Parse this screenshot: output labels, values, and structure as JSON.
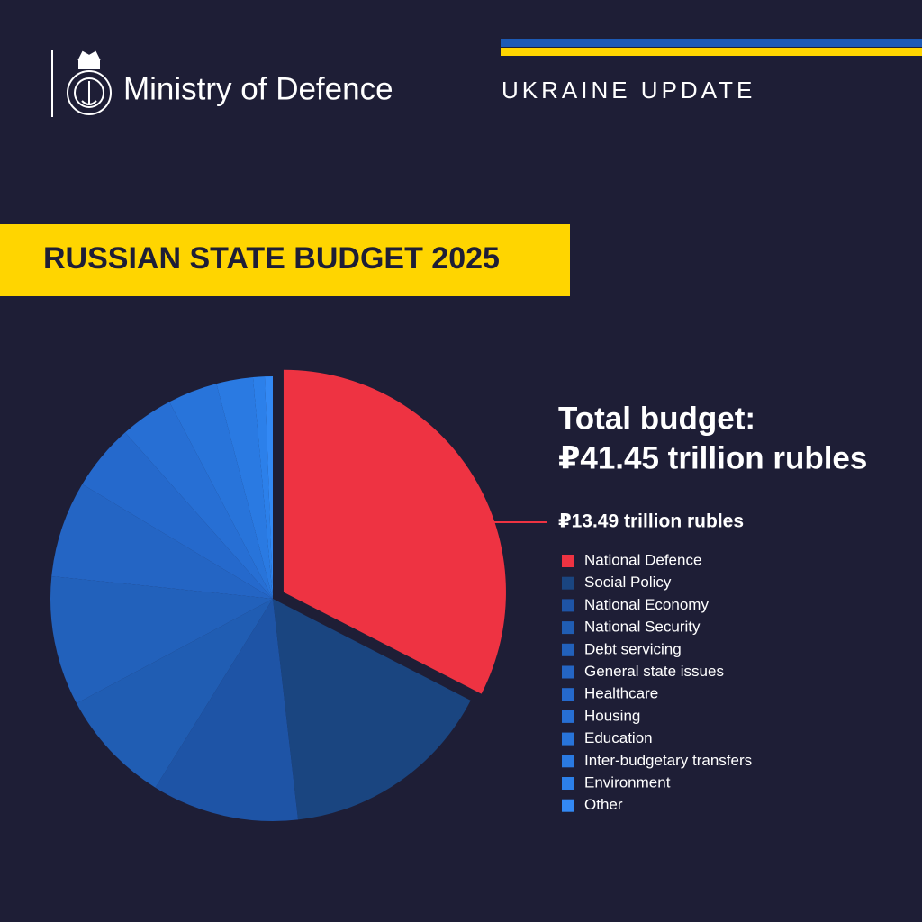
{
  "header": {
    "organisation": "Ministry of Defence",
    "tag": "UKRAINE UPDATE"
  },
  "chart_data": {
    "type": "pie",
    "title": "RUSSIAN STATE BUDGET 2025",
    "total_label": "Total budget:",
    "total_value": "₽41.45 trillion rubles",
    "categories": [
      "National Defence",
      "Social Policy",
      "National Economy",
      "National Security",
      "Debt servicing",
      "General state issues",
      "Healthcare",
      "Housing",
      "Education",
      "Inter-budgetary transfers",
      "Environment",
      "Other"
    ],
    "values": [
      13.49,
      6.48,
      4.42,
      3.46,
      3.9,
      2.9,
      2.0,
      1.6,
      1.5,
      1.1,
      0.35,
      0.24
    ],
    "value_labels": [
      "₽13.49 trillion rubles",
      null,
      null,
      null,
      null,
      null,
      null,
      null,
      null,
      null,
      null,
      null
    ],
    "colors": [
      "#ee3342",
      "#1a4580",
      "#1e54a6",
      "#205db3",
      "#2261bb",
      "#2465c4",
      "#2569cc",
      "#276fd4",
      "#2874da",
      "#2a7ae2",
      "#2c80ea",
      "#3389f5"
    ],
    "legend": "right"
  }
}
